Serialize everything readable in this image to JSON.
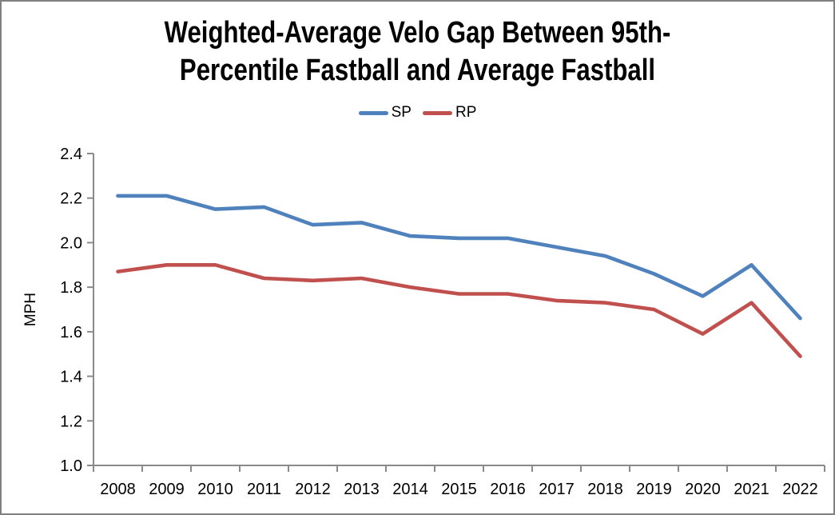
{
  "title_line1": "Weighted-Average Velo Gap Between 95th-",
  "title_line2": "Percentile Fastball and Average Fastball",
  "legend": [
    {
      "label": "SP",
      "color": "#4F81BD"
    },
    {
      "label": "RP",
      "color": "#C0504D"
    }
  ],
  "colors": {
    "sp_line": "#4F81BD",
    "rp_line": "#C0504D",
    "axis": "#8A8A8A",
    "frame_border": "#808080",
    "text": "#000000"
  },
  "chart_data": {
    "type": "line",
    "title": "Weighted-Average Velo Gap Between 95th-Percentile Fastball and Average Fastball",
    "categories": [
      "2008",
      "2009",
      "2010",
      "2011",
      "2012",
      "2013",
      "2014",
      "2015",
      "2016",
      "2017",
      "2018",
      "2019",
      "2020",
      "2021",
      "2022"
    ],
    "series": [
      {
        "name": "SP",
        "color": "#4F81BD",
        "values": [
          2.21,
          2.21,
          2.15,
          2.16,
          2.08,
          2.09,
          2.03,
          2.02,
          2.02,
          1.98,
          1.94,
          1.86,
          1.76,
          1.9,
          1.66
        ]
      },
      {
        "name": "RP",
        "color": "#C0504D",
        "values": [
          1.87,
          1.9,
          1.9,
          1.84,
          1.83,
          1.84,
          1.8,
          1.77,
          1.77,
          1.74,
          1.73,
          1.7,
          1.59,
          1.73,
          1.49
        ]
      }
    ],
    "xlabel": "",
    "ylabel": "MPH",
    "ylim": [
      1.0,
      2.4
    ],
    "ytick_step": 0.2,
    "ytick_labels": [
      "1.0",
      "1.2",
      "1.4",
      "1.6",
      "1.8",
      "2.0",
      "2.2",
      "2.4"
    ],
    "grid": false,
    "legend_position": "top-center"
  }
}
